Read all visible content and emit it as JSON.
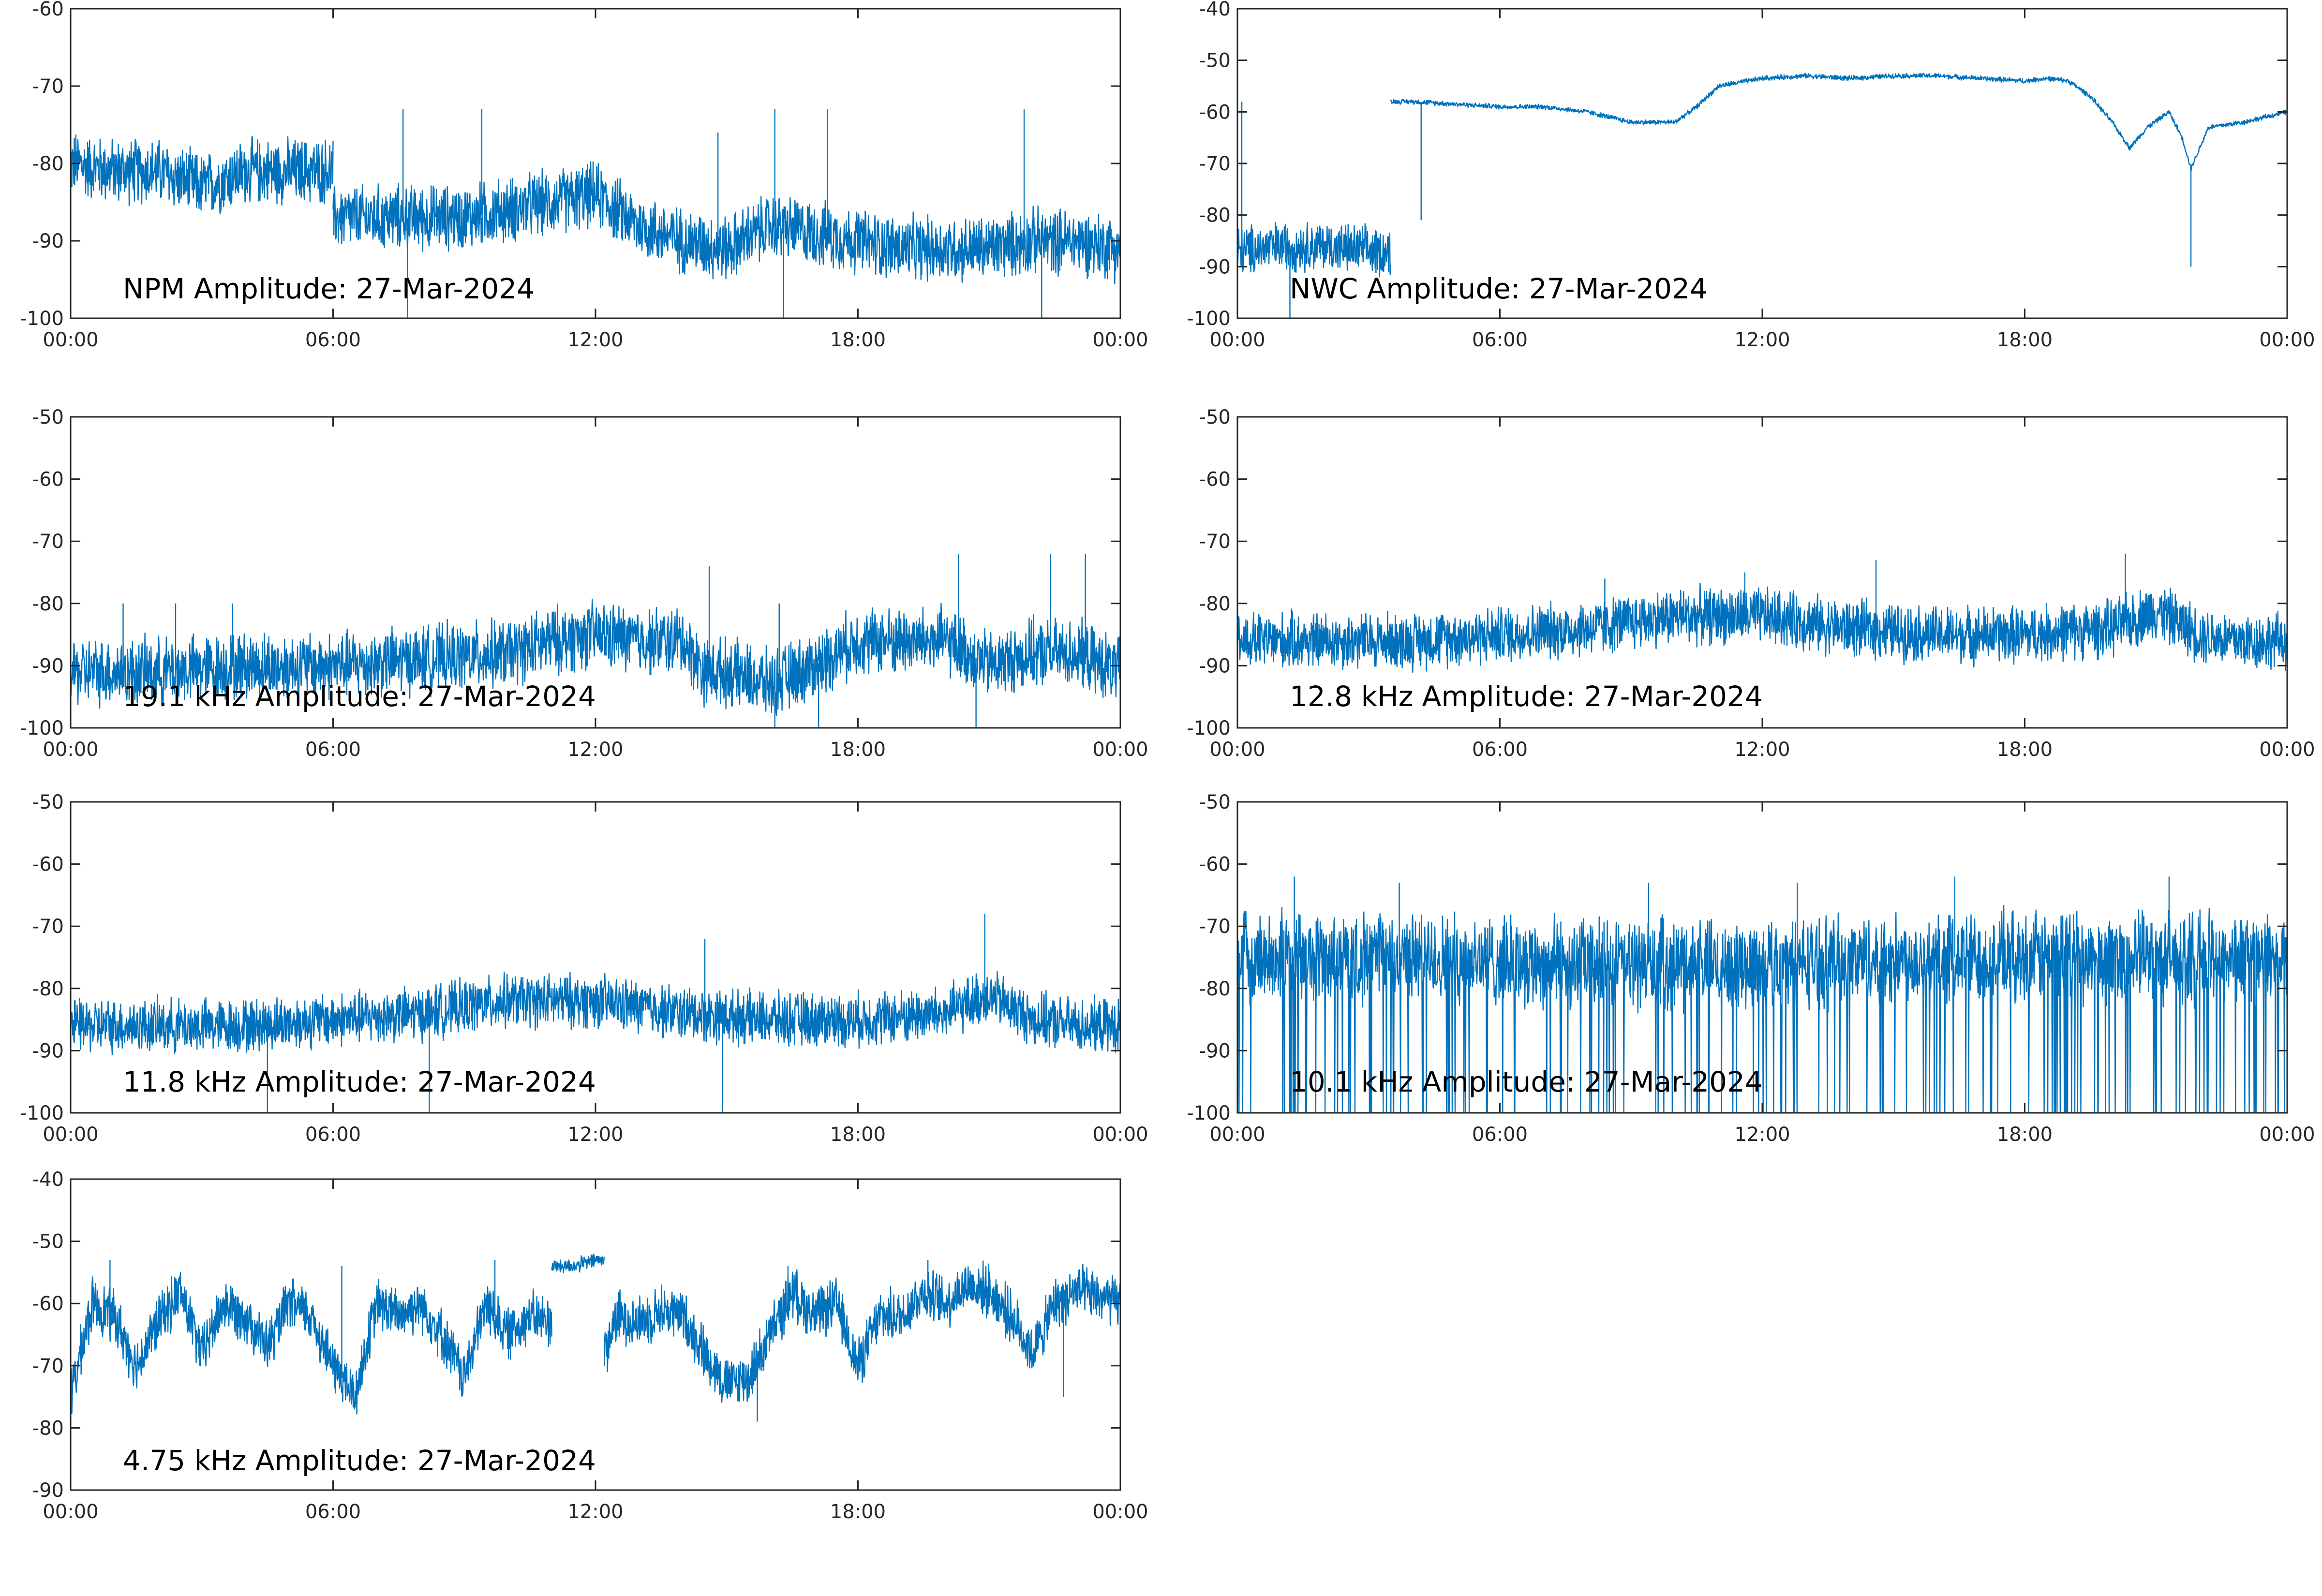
{
  "chart_data": [
    {
      "type": "line",
      "label": "NPM Amplitude: 27-Mar-2024",
      "ylim": [
        -100,
        -60
      ],
      "yticks": [
        "-60",
        "-70",
        "-80",
        "-90",
        "-100"
      ],
      "xticks": [
        "00:00",
        "06:00",
        "12:00",
        "18:00",
        "00:00"
      ],
      "xlim_hours": [
        0,
        24
      ],
      "grid": false,
      "series": [
        {
          "color": "#0072BD",
          "noise": 3.5,
          "segments": [
            {
              "x": [
                0,
                1,
                2,
                3,
                4,
                5,
                6
              ],
              "y": [
                -80,
                -81,
                -81,
                -83,
                -81,
                -81,
                -81
              ]
            },
            {
              "x": [
                6,
                7,
                8,
                9,
                10,
                11,
                12,
                13,
                14,
                15,
                16,
                17,
                18,
                19,
                20,
                21,
                22,
                23,
                24
              ],
              "y": [
                -87,
                -87,
                -87,
                -87,
                -86,
                -85,
                -84,
                -88,
                -90,
                -91,
                -88,
                -89,
                -90,
                -91,
                -91,
                -91,
                -90,
                -90,
                -91
              ]
            }
          ],
          "spikes": [
            [
              7.6,
              -73
            ],
            [
              9.4,
              -73
            ],
            [
              14.8,
              -76
            ],
            [
              16.1,
              -73
            ],
            [
              17.3,
              -73
            ],
            [
              21.8,
              -73
            ],
            [
              7.7,
              -100
            ],
            [
              16.3,
              -100
            ],
            [
              22.2,
              -100
            ]
          ]
        }
      ]
    },
    {
      "type": "line",
      "label": "NWC Amplitude: 27-Mar-2024",
      "ylim": [
        -100,
        -40
      ],
      "yticks": [
        "-40",
        "-50",
        "-60",
        "-70",
        "-80",
        "-90",
        "-100"
      ],
      "xticks": [
        "00:00",
        "06:00",
        "12:00",
        "18:00",
        "00:00"
      ],
      "xlim_hours": [
        0,
        24
      ],
      "grid": false,
      "series": [
        {
          "color": "#0072BD",
          "noise": 0.4,
          "segments": [
            {
              "x": [
                0,
                1,
                2,
                3,
                3.5
              ],
              "y": [
                -87,
                -86,
                -86,
                -87,
                -87
              ],
              "noise": 4
            },
            {
              "x": [
                3.5,
                4,
                5,
                6,
                7,
                8,
                9,
                9.5,
                10,
                10.5,
                11,
                12,
                13,
                14,
                15,
                16,
                17,
                18,
                18.5,
                19,
                19.5,
                20,
                20.4,
                20.8,
                21.3,
                21.6,
                21.8,
                22.2,
                23,
                24
              ],
              "y": [
                -58,
                -58,
                -58.5,
                -59,
                -59,
                -60,
                -62,
                -62,
                -62,
                -59,
                -55,
                -53.5,
                -53,
                -53.5,
                -53,
                -53,
                -53.5,
                -54,
                -53.5,
                -54,
                -57,
                -62,
                -67,
                -63,
                -60,
                -65,
                -71,
                -63,
                -62,
                -60
              ]
            }
          ],
          "spikes": [
            [
              0.1,
              -58
            ],
            [
              4.2,
              -81
            ],
            [
              21.8,
              -90
            ],
            [
              1.2,
              -100
            ]
          ]
        }
      ]
    },
    {
      "type": "line",
      "label": "19.1 kHz Amplitude: 27-Mar-2024",
      "ylim": [
        -100,
        -50
      ],
      "yticks": [
        "-50",
        "-60",
        "-70",
        "-80",
        "-90",
        "-100"
      ],
      "xticks": [
        "00:00",
        "06:00",
        "12:00",
        "18:00",
        "00:00"
      ],
      "xlim_hours": [
        0,
        24
      ],
      "grid": false,
      "series": [
        {
          "color": "#0072BD",
          "noise": 4.5,
          "segments": [
            {
              "x": [
                0,
                2,
                4,
                6,
                8,
                10,
                11,
                12,
                13,
                14,
                14.5,
                15,
                16,
                17,
                18,
                19,
                20,
                21,
                22,
                23,
                24
              ],
              "y": [
                -91,
                -91,
                -90,
                -90,
                -89,
                -88,
                -86,
                -85,
                -86,
                -86,
                -91,
                -91,
                -93,
                -90,
                -86,
                -86,
                -86,
                -90,
                -88,
                -88,
                -91
              ]
            }
          ],
          "spikes": [
            [
              1.2,
              -80
            ],
            [
              2.4,
              -80
            ],
            [
              3.7,
              -80
            ],
            [
              14.6,
              -74
            ],
            [
              16.2,
              -80
            ],
            [
              20.3,
              -72
            ],
            [
              22.4,
              -72
            ],
            [
              23.2,
              -72
            ],
            [
              16.1,
              -100
            ],
            [
              17.1,
              -100
            ],
            [
              20.7,
              -100
            ]
          ]
        }
      ]
    },
    {
      "type": "line",
      "label": "12.8 kHz Amplitude: 27-Mar-2024",
      "ylim": [
        -100,
        -50
      ],
      "yticks": [
        "-50",
        "-60",
        "-70",
        "-80",
        "-90",
        "-100"
      ],
      "xticks": [
        "00:00",
        "06:00",
        "12:00",
        "18:00",
        "00:00"
      ],
      "xlim_hours": [
        0,
        24
      ],
      "grid": false,
      "series": [
        {
          "color": "#0072BD",
          "noise": 3.8,
          "segments": [
            {
              "x": [
                0,
                2,
                4,
                6,
                8,
                10,
                12,
                14,
                16,
                18,
                20,
                21,
                22,
                23,
                24
              ],
              "y": [
                -86,
                -86,
                -86,
                -85,
                -84,
                -82,
                -82,
                -84,
                -85,
                -85,
                -84,
                -81,
                -85,
                -86,
                -86
              ]
            }
          ],
          "spikes": [
            [
              14.6,
              -73
            ],
            [
              20.3,
              -72
            ],
            [
              8.4,
              -76
            ],
            [
              11.6,
              -75
            ]
          ]
        }
      ]
    },
    {
      "type": "line",
      "label": "11.8 kHz Amplitude: 27-Mar-2024",
      "ylim": [
        -100,
        -50
      ],
      "yticks": [
        "-50",
        "-60",
        "-70",
        "-80",
        "-90",
        "-100"
      ],
      "xticks": [
        "00:00",
        "06:00",
        "12:00",
        "18:00",
        "00:00"
      ],
      "xlim_hours": [
        0,
        24
      ],
      "grid": false,
      "series": [
        {
          "color": "#0072BD",
          "noise": 3.6,
          "segments": [
            {
              "x": [
                0,
                2,
                4,
                6,
                8,
                10,
                12,
                14,
                16,
                18,
                20,
                21,
                22,
                23,
                24
              ],
              "y": [
                -86,
                -86,
                -86,
                -85,
                -84,
                -82,
                -82,
                -84,
                -85,
                -85,
                -84,
                -81,
                -85,
                -86,
                -86
              ]
            }
          ],
          "spikes": [
            [
              14.5,
              -72
            ],
            [
              20.9,
              -68
            ],
            [
              8.2,
              -100
            ],
            [
              14.9,
              -100
            ],
            [
              4.5,
              -100
            ]
          ]
        }
      ]
    },
    {
      "type": "line",
      "label": "10.1 kHz Amplitude: 27-Mar-2024",
      "ylim": [
        -100,
        -50
      ],
      "yticks": [
        "-50",
        "-60",
        "-70",
        "-80",
        "-90",
        "-100"
      ],
      "xticks": [
        "00:00",
        "06:00",
        "12:00",
        "18:00",
        "00:00"
      ],
      "xlim_hours": [
        0,
        24
      ],
      "grid": false,
      "series": [
        {
          "color": "#0072BD",
          "noise": 6,
          "segments": [
            {
              "x": [
                0,
                4,
                8,
                12,
                16,
                20,
                24
              ],
              "y": [
                -75,
                -75,
                -76,
                -76,
                -75,
                -75,
                -75
              ]
            }
          ],
          "dropouts": {
            "every_hours": 0.22,
            "to": -100
          },
          "spikes": [
            [
              1.3,
              -62
            ],
            [
              3.7,
              -63
            ],
            [
              9.4,
              -63
            ],
            [
              12.8,
              -63
            ],
            [
              16.4,
              -62
            ],
            [
              21.3,
              -62
            ]
          ]
        }
      ]
    },
    {
      "type": "line",
      "label": "4.75 kHz Amplitude: 27-Mar-2024",
      "ylim": [
        -90,
        -40
      ],
      "yticks": [
        "-40",
        "-50",
        "-60",
        "-70",
        "-80",
        "-90"
      ],
      "xticks": [
        "00:00",
        "06:00",
        "12:00",
        "18:00",
        "00:00"
      ],
      "xlim_hours": [
        0,
        24
      ],
      "grid": false,
      "series": [
        {
          "color": "#0072BD",
          "noise": 3.5,
          "segments": [
            {
              "x": [
                0,
                0.5,
                1,
                1.5,
                2,
                2.5,
                3,
                3.5,
                4,
                4.5,
                5,
                5.5,
                6,
                6.5,
                7,
                7.5,
                8,
                8.5,
                9,
                9.5,
                10,
                10.5,
                11
              ],
              "y": [
                -75,
                -60,
                -62,
                -70,
                -63,
                -58,
                -68,
                -60,
                -62,
                -67,
                -60,
                -62,
                -70,
                -75,
                -60,
                -62,
                -60,
                -65,
                -72,
                -60,
                -65,
                -62,
                -63
              ]
            },
            {
              "x": [
                11,
                11.5,
                12,
                12.2
              ],
              "y": [
                -54,
                -54,
                -53,
                -53
              ],
              "noise": 1
            },
            {
              "x": [
                12.2,
                12.5,
                13,
                13.5,
                14,
                14.5,
                15,
                15.5,
                16,
                16.5,
                17,
                17.5,
                18,
                18.5,
                19,
                19.5,
                20,
                20.5,
                21,
                21.5,
                22,
                22.5,
                23,
                23.5,
                24
              ],
              "y": [
                -68,
                -62,
                -63,
                -61,
                -62,
                -68,
                -73,
                -72,
                -65,
                -58,
                -62,
                -60,
                -70,
                -62,
                -62,
                -58,
                -60,
                -57,
                -58,
                -62,
                -68,
                -60,
                -58,
                -59,
                -60
              ]
            }
          ],
          "spikes": [
            [
              0.9,
              -53
            ],
            [
              6.2,
              -54
            ],
            [
              9.7,
              -53
            ],
            [
              16.4,
              -54
            ],
            [
              19.6,
              -53
            ],
            [
              22.7,
              -75
            ],
            [
              15.7,
              -79
            ]
          ]
        }
      ]
    }
  ]
}
